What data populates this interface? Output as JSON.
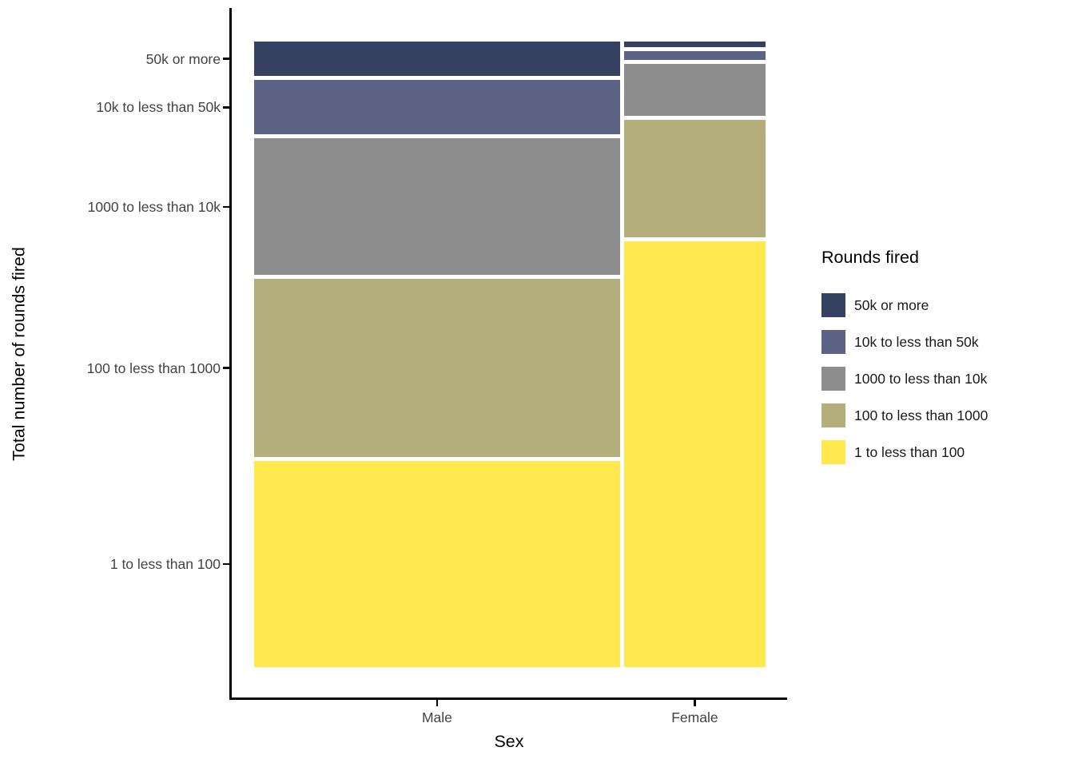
{
  "chart_data": {
    "type": "mosaic",
    "title": "",
    "xlabel": "Sex",
    "ylabel": "Total number of rounds fired",
    "grid": false,
    "legend": {
      "title": "Rounds fired",
      "position": "right",
      "entries": [
        {
          "label": "50k or more",
          "color": "#344160"
        },
        {
          "label": "10k to less than 50k",
          "color": "#5d6385"
        },
        {
          "label": "1000 to less than 10k",
          "color": "#8d8d8d"
        },
        {
          "label": "100 to less than 1000",
          "color": "#b4ae7b"
        },
        {
          "label": "1 to less than 100",
          "color": "#ffe94f"
        }
      ]
    },
    "x_categories": [
      "Male",
      "Female"
    ],
    "y_categories": [
      "50k or more",
      "10k to less than 50k",
      "1000 to less than 10k",
      "100 to less than 1000",
      "1 to less than 100"
    ],
    "columns": [
      {
        "category": "Male",
        "width_fraction": 0.721,
        "segments": [
          {
            "category": "50k or more",
            "fraction": 0.057
          },
          {
            "category": "10k to less than 50k",
            "fraction": 0.089
          },
          {
            "category": "1000 to less than 10k",
            "fraction": 0.224
          },
          {
            "category": "100 to less than 1000",
            "fraction": 0.292
          },
          {
            "category": "1 to less than 100",
            "fraction": 0.338
          }
        ]
      },
      {
        "category": "Female",
        "width_fraction": 0.279,
        "segments": [
          {
            "category": "50k or more",
            "fraction": 0.009
          },
          {
            "category": "10k to less than 50k",
            "fraction": 0.015
          },
          {
            "category": "1000 to less than 10k",
            "fraction": 0.085
          },
          {
            "category": "100 to less than 1000",
            "fraction": 0.192
          },
          {
            "category": "1 to less than 100",
            "fraction": 0.699
          }
        ]
      }
    ]
  }
}
